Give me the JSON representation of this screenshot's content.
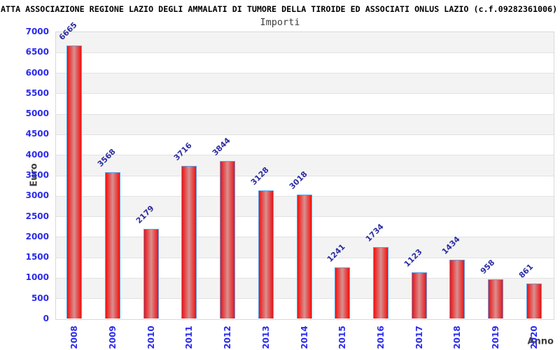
{
  "page": {
    "window_title": "ATTA ASSOCIAZIONE REGIONE LAZIO DEGLI AMMALATI DI TUMORE DELLA TIROIDE ED ASSOCIATI ONLUS LAZIO (c.f.09282361006)"
  },
  "chart_data": {
    "type": "bar",
    "title": "ATTA ASSOCIAZIONE REGIONE LAZIO DEGLI AMMALATI DI TUMORE DELLA TIROIDE ED ASSOCIATI ONLUS LAZIO (c.f.09282361006)",
    "subtitle": "Importi",
    "xlabel": "Anno",
    "ylabel": "Euro",
    "categories": [
      "2008",
      "2009",
      "2010",
      "2011",
      "2012",
      "2013",
      "2014",
      "2015",
      "2016",
      "2017",
      "2018",
      "2019",
      "2020"
    ],
    "values": [
      6665,
      3568,
      2179,
      3716,
      3844,
      3128,
      3018,
      1241,
      1734,
      1123,
      1434,
      958,
      861
    ],
    "ylim": [
      0,
      7000
    ],
    "ytick_step": 500,
    "grid": "horizontal alternating bands",
    "legend": "none",
    "colors": {
      "bar_edge_red": "#ee1212",
      "bar_mid_red": "#e45050",
      "bar_center_pink": "#d89090",
      "bar_border_blue": "#58a0e8",
      "axis_tick_blue": "#2b2bee",
      "value_label_navy": "#2d2da2",
      "band_gray": "#f3f3f3",
      "band_white": "#ffffff",
      "gridline_gray": "#e2e2e2",
      "plot_border_gray": "#d9d9d9",
      "axis_name_gray": "#3d3d3d",
      "title_black": "#000000"
    }
  }
}
